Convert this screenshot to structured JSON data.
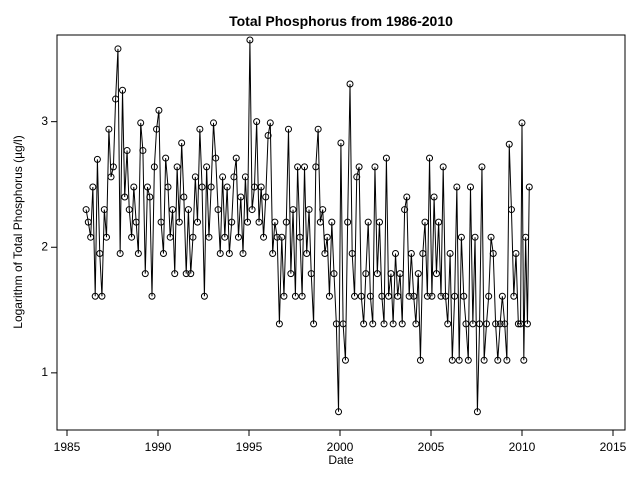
{
  "chart_data": {
    "type": "line",
    "title": "Total Phosphorus from 1986-2010",
    "x_label": "Date",
    "y_label": "Logarithm of Total Phosphorus (µg/l)",
    "xlim": [
      1984.45,
      2015.66
    ],
    "xticks": [
      1985,
      1990,
      1995,
      2000,
      2005,
      2010,
      2015
    ],
    "ylim": [
      0.545,
      3.69
    ],
    "yticks": [
      1,
      2,
      3
    ],
    "grid": false,
    "series": [
      {
        "name": "Total Phosphorus",
        "color": "#000000",
        "markers": "circle",
        "x": [
          1986.05,
          1986.17,
          1986.3,
          1986.42,
          1986.55,
          1986.67,
          1986.8,
          1986.92,
          1987.05,
          1987.17,
          1987.3,
          1987.42,
          1987.55,
          1987.67,
          1987.8,
          1987.92,
          1988.05,
          1988.17,
          1988.3,
          1988.42,
          1988.55,
          1988.67,
          1988.8,
          1988.92,
          1989.05,
          1989.17,
          1989.3,
          1989.42,
          1989.55,
          1989.67,
          1989.8,
          1989.92,
          1990.05,
          1990.17,
          1990.3,
          1990.42,
          1990.55,
          1990.67,
          1990.8,
          1990.92,
          1991.05,
          1991.17,
          1991.3,
          1991.42,
          1991.55,
          1991.67,
          1991.8,
          1991.92,
          1992.05,
          1992.17,
          1992.3,
          1992.42,
          1992.55,
          1992.67,
          1992.8,
          1992.92,
          1993.05,
          1993.17,
          1993.3,
          1993.42,
          1993.55,
          1993.67,
          1993.8,
          1993.92,
          1994.05,
          1994.17,
          1994.3,
          1994.42,
          1994.55,
          1994.67,
          1994.8,
          1994.92,
          1995.05,
          1995.17,
          1995.3,
          1995.42,
          1995.55,
          1995.67,
          1995.8,
          1995.92,
          1996.05,
          1996.17,
          1996.3,
          1996.42,
          1996.55,
          1996.67,
          1996.8,
          1996.92,
          1997.05,
          1997.17,
          1997.3,
          1997.42,
          1997.55,
          1997.67,
          1997.8,
          1997.92,
          1998.05,
          1998.17,
          1998.3,
          1998.42,
          1998.55,
          1998.67,
          1998.8,
          1998.92,
          1999.05,
          1999.17,
          1999.3,
          1999.42,
          1999.55,
          1999.67,
          1999.8,
          1999.92,
          2000.05,
          2000.17,
          2000.3,
          2000.42,
          2000.55,
          2000.67,
          2000.8,
          2000.92,
          2001.05,
          2001.17,
          2001.3,
          2001.42,
          2001.55,
          2001.67,
          2001.8,
          2001.92,
          2002.05,
          2002.17,
          2002.3,
          2002.42,
          2002.55,
          2002.67,
          2002.8,
          2002.92,
          2003.05,
          2003.17,
          2003.3,
          2003.42,
          2003.55,
          2003.67,
          2003.8,
          2003.92,
          2004.05,
          2004.17,
          2004.3,
          2004.42,
          2004.55,
          2004.67,
          2004.8,
          2004.92,
          2005.05,
          2005.17,
          2005.3,
          2005.42,
          2005.55,
          2005.67,
          2005.8,
          2005.92,
          2006.05,
          2006.17,
          2006.3,
          2006.42,
          2006.55,
          2006.67,
          2006.8,
          2006.92,
          2007.05,
          2007.17,
          2007.3,
          2007.42,
          2007.55,
          2007.67,
          2007.8,
          2007.92,
          2008.05,
          2008.17,
          2008.3,
          2008.42,
          2008.55,
          2008.67,
          2008.8,
          2008.92,
          2009.05,
          2009.17,
          2009.3,
          2009.42,
          2009.55,
          2009.67,
          2009.8,
          2009.92,
          2010.0,
          2010.1,
          2010.2,
          2010.3,
          2010.4
        ],
        "values": [
          2.3,
          2.2,
          2.08,
          2.48,
          1.61,
          2.7,
          1.95,
          1.61,
          2.3,
          2.08,
          2.94,
          2.56,
          2.64,
          3.18,
          3.58,
          1.95,
          3.25,
          2.4,
          2.77,
          2.3,
          2.08,
          2.48,
          2.2,
          1.95,
          2.99,
          2.77,
          1.79,
          2.48,
          2.4,
          1.61,
          2.64,
          2.94,
          3.09,
          2.2,
          1.95,
          2.71,
          2.48,
          2.08,
          2.3,
          1.79,
          2.64,
          2.2,
          2.83,
          2.4,
          1.79,
          2.3,
          1.79,
          2.08,
          2.56,
          2.2,
          2.94,
          2.48,
          1.61,
          2.64,
          2.08,
          2.48,
          2.99,
          2.71,
          2.3,
          1.95,
          2.56,
          2.08,
          2.48,
          1.95,
          2.2,
          2.56,
          2.71,
          2.08,
          2.4,
          1.95,
          2.56,
          2.2,
          3.65,
          2.3,
          2.48,
          3.0,
          2.2,
          2.48,
          2.08,
          2.4,
          2.89,
          2.99,
          1.95,
          2.2,
          2.08,
          1.39,
          2.08,
          1.61,
          2.2,
          2.94,
          1.79,
          2.3,
          1.61,
          2.64,
          2.08,
          1.61,
          2.64,
          1.95,
          2.3,
          1.79,
          1.39,
          2.64,
          2.94,
          2.2,
          2.3,
          1.95,
          2.08,
          1.61,
          2.2,
          1.79,
          1.39,
          0.69,
          2.83,
          1.39,
          1.1,
          2.2,
          3.3,
          1.95,
          1.61,
          2.56,
          2.64,
          1.61,
          1.39,
          1.79,
          2.2,
          1.61,
          1.39,
          2.64,
          1.79,
          2.2,
          1.61,
          1.39,
          2.71,
          1.61,
          1.79,
          1.39,
          1.95,
          1.61,
          1.79,
          1.39,
          2.3,
          2.4,
          1.61,
          1.95,
          1.61,
          1.39,
          1.79,
          1.1,
          1.95,
          2.2,
          1.61,
          2.71,
          1.61,
          2.4,
          1.79,
          2.2,
          1.61,
          2.64,
          1.61,
          1.39,
          1.95,
          1.1,
          1.61,
          2.48,
          1.1,
          2.08,
          1.61,
          1.39,
          1.1,
          2.48,
          1.39,
          2.08,
          0.69,
          1.39,
          2.64,
          1.1,
          1.39,
          1.61,
          2.08,
          1.95,
          1.39,
          1.1,
          1.39,
          1.61,
          1.39,
          1.1,
          2.82,
          2.3,
          1.61,
          1.95,
          1.39,
          1.39,
          2.99,
          1.1,
          2.08,
          1.39,
          2.48
        ]
      }
    ]
  }
}
